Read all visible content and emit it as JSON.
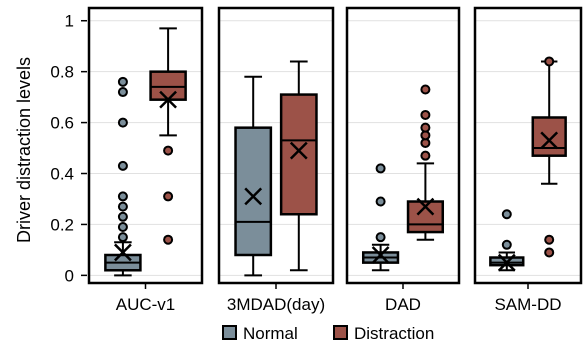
{
  "chart_data": {
    "type": "box",
    "ylabel": "Driver distraction levels",
    "ylim": [
      -0.03,
      1.05
    ],
    "yticks": [
      0,
      0.2,
      0.4,
      0.6,
      0.8,
      1
    ],
    "ytick_labels": [
      "0",
      "0.2",
      "0.4",
      "0.6",
      "0.8",
      "1"
    ],
    "colors": {
      "Normal": "#7b8e9a",
      "Distraction": "#9c5248"
    },
    "legend": {
      "placement": "bottom-center",
      "items": [
        "Normal",
        "Distraction"
      ]
    },
    "panels": [
      {
        "label": "AUC-v1",
        "boxes": [
          {
            "series": "Normal",
            "q1": 0.02,
            "median": 0.05,
            "q3": 0.08,
            "whisker_low": 0.0,
            "whisker_high": 0.13,
            "mean": 0.09,
            "outliers": [
              0.15,
              0.19,
              0.23,
              0.27,
              0.31,
              0.43,
              0.6,
              0.72,
              0.76
            ]
          },
          {
            "series": "Distraction",
            "q1": 0.69,
            "median": 0.74,
            "q3": 0.8,
            "whisker_low": 0.55,
            "whisker_high": 0.97,
            "mean": 0.69,
            "outliers": [
              0.14,
              0.31,
              0.49
            ]
          }
        ]
      },
      {
        "label": "3MDAD(day)",
        "boxes": [
          {
            "series": "Normal",
            "q1": 0.08,
            "median": 0.21,
            "q3": 0.58,
            "whisker_low": 0.0,
            "whisker_high": 0.78,
            "mean": 0.31,
            "outliers": []
          },
          {
            "series": "Distraction",
            "q1": 0.24,
            "median": 0.53,
            "q3": 0.71,
            "whisker_low": 0.02,
            "whisker_high": 0.84,
            "mean": 0.49,
            "outliers": []
          }
        ]
      },
      {
        "label": "DAD",
        "boxes": [
          {
            "series": "Normal",
            "q1": 0.05,
            "median": 0.07,
            "q3": 0.09,
            "whisker_low": 0.02,
            "whisker_high": 0.12,
            "mean": 0.08,
            "outliers": [
              0.15,
              0.29,
              0.42
            ]
          },
          {
            "series": "Distraction",
            "q1": 0.17,
            "median": 0.2,
            "q3": 0.29,
            "whisker_low": 0.14,
            "whisker_high": 0.44,
            "mean": 0.27,
            "outliers": [
              0.47,
              0.52,
              0.55,
              0.58,
              0.63,
              0.73
            ]
          }
        ]
      },
      {
        "label": "SAM-DD",
        "boxes": [
          {
            "series": "Normal",
            "q1": 0.04,
            "median": 0.05,
            "q3": 0.07,
            "whisker_low": 0.02,
            "whisker_high": 0.09,
            "mean": 0.05,
            "outliers": [
              0.12,
              0.24
            ]
          },
          {
            "series": "Distraction",
            "q1": 0.47,
            "median": 0.5,
            "q3": 0.62,
            "whisker_low": 0.36,
            "whisker_high": 0.84,
            "mean": 0.53,
            "outliers": [
              0.09,
              0.14,
              0.84
            ]
          }
        ]
      }
    ]
  }
}
